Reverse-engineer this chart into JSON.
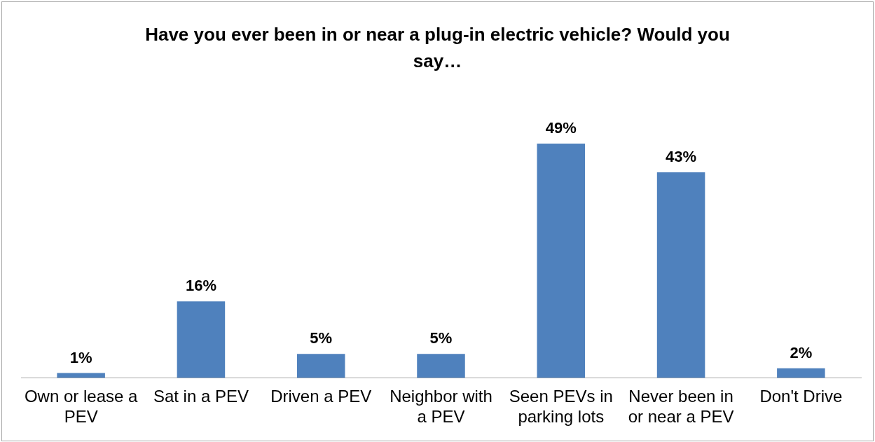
{
  "chart_data": {
    "type": "bar",
    "title": "Have you ever been in or near a plug-in electric vehicle? Would you say…",
    "categories": [
      "Own or lease a PEV",
      "Sat in a PEV",
      "Driven a PEV",
      "Neighbor with a PEV",
      "Seen PEVs in parking lots",
      "Never been in or near a PEV",
      "Don't Drive"
    ],
    "values": [
      1,
      16,
      5,
      5,
      49,
      43,
      2
    ],
    "value_labels": [
      "1%",
      "16%",
      "5%",
      "5%",
      "49%",
      "43%",
      "2%"
    ],
    "color": "#4f81bd",
    "grid": false,
    "legend": false
  }
}
